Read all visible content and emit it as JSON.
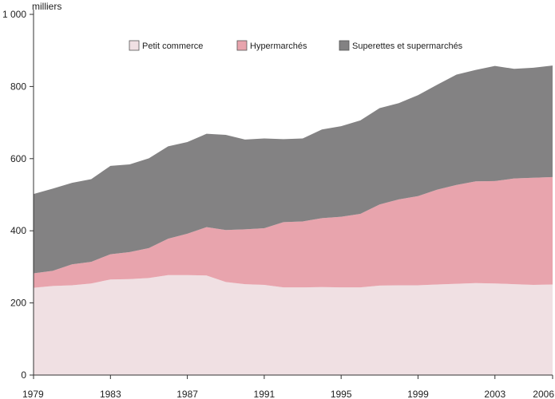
{
  "chart_data": {
    "type": "area",
    "stacked": true,
    "unit_label": "milliers",
    "x": [
      1979,
      1980,
      1981,
      1982,
      1983,
      1984,
      1985,
      1986,
      1987,
      1988,
      1989,
      1990,
      1991,
      1992,
      1993,
      1994,
      1995,
      1996,
      1997,
      1998,
      1999,
      2000,
      2001,
      2002,
      2003,
      2004,
      2005,
      2006
    ],
    "x_tick_labels": [
      "1979",
      "1983",
      "1987",
      "1991",
      "1995",
      "1999",
      "2003",
      "2006"
    ],
    "x_tick_values": [
      1979,
      1983,
      1987,
      1991,
      1995,
      1999,
      2003,
      2006
    ],
    "y_tick_labels": [
      "0",
      "200",
      "400",
      "600",
      "800",
      "1 000"
    ],
    "y_tick_values": [
      0,
      200,
      400,
      600,
      800,
      1000
    ],
    "ylim": [
      0,
      1000
    ],
    "xlim": [
      1979,
      2006
    ],
    "legend_position": "top",
    "grid": false,
    "series": [
      {
        "name": "Petit commerce",
        "color": "#f0e0e3",
        "values": [
          242,
          247,
          249,
          254,
          265,
          266,
          269,
          277,
          277,
          276,
          258,
          252,
          250,
          243,
          243,
          244,
          243,
          243,
          248,
          249,
          249,
          251,
          253,
          255,
          254,
          252,
          250,
          251
        ]
      },
      {
        "name": "Hypermarchés",
        "color": "#e8a4ad",
        "values": [
          40,
          42,
          58,
          60,
          70,
          75,
          83,
          101,
          115,
          134,
          144,
          152,
          157,
          181,
          183,
          191,
          196,
          204,
          225,
          238,
          247,
          263,
          274,
          282,
          284,
          293,
          297,
          298
        ]
      },
      {
        "name": "Superettes et supermarchés",
        "color": "#838283",
        "values": [
          220,
          228,
          226,
          229,
          245,
          243,
          249,
          256,
          254,
          259,
          264,
          249,
          249,
          230,
          230,
          246,
          251,
          259,
          267,
          267,
          280,
          291,
          306,
          309,
          319,
          304,
          305,
          309
        ]
      }
    ]
  }
}
